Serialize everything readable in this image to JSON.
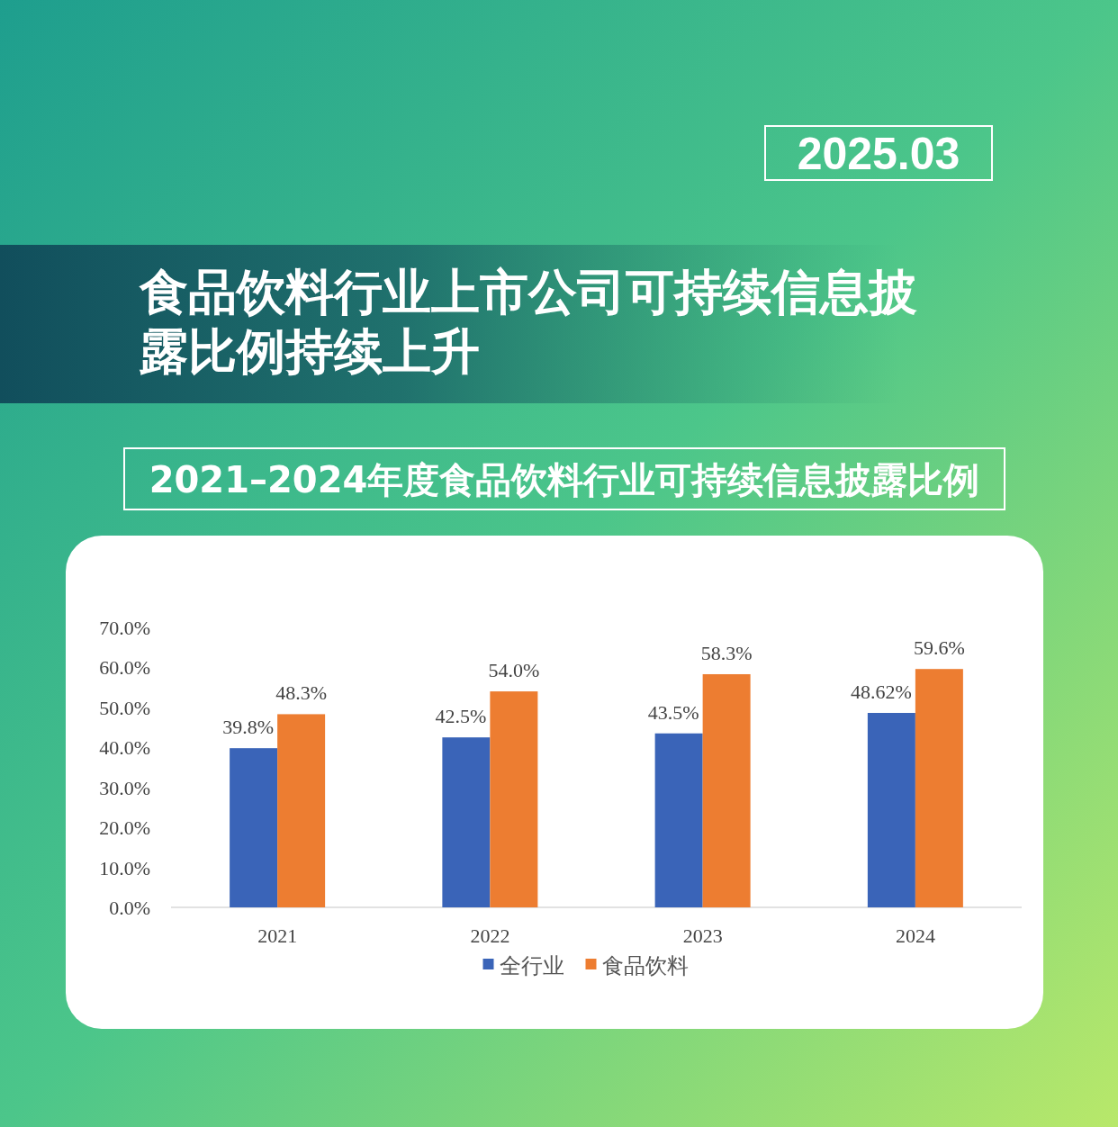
{
  "chart_data": {
    "type": "bar",
    "title": "食品饮料行业上市公司可持续信息披露比例持续上升",
    "subtitle": "2021–2024年度食品饮料行业可持续信息披露比例",
    "annotations": [
      "2025.03"
    ],
    "categories": [
      "2021",
      "2022",
      "2023",
      "2024"
    ],
    "series": [
      {
        "name": "全行业",
        "color": "#3a64b8",
        "values": [
          39.8,
          42.5,
          43.5,
          48.62
        ],
        "value_labels": [
          "39.8%",
          "42.5%",
          "43.5%",
          "48.62%"
        ]
      },
      {
        "name": "食品饮料",
        "color": "#ed7d31",
        "values": [
          48.3,
          54.0,
          58.3,
          59.6
        ],
        "value_labels": [
          "48.3%",
          "54.0%",
          "58.3%",
          "59.6%"
        ]
      }
    ],
    "ylim": [
      0,
      70
    ],
    "yticks": [
      {
        "value": 0,
        "label": "0.0%"
      },
      {
        "value": 10,
        "label": "10.0%"
      },
      {
        "value": 20,
        "label": "20.0%"
      },
      {
        "value": 30,
        "label": "30.0%"
      },
      {
        "value": 40,
        "label": "40.0%"
      },
      {
        "value": 50,
        "label": "50.0%"
      },
      {
        "value": 60,
        "label": "60.0%"
      },
      {
        "value": 70,
        "label": "70.0%"
      }
    ],
    "legend": "bottom"
  }
}
